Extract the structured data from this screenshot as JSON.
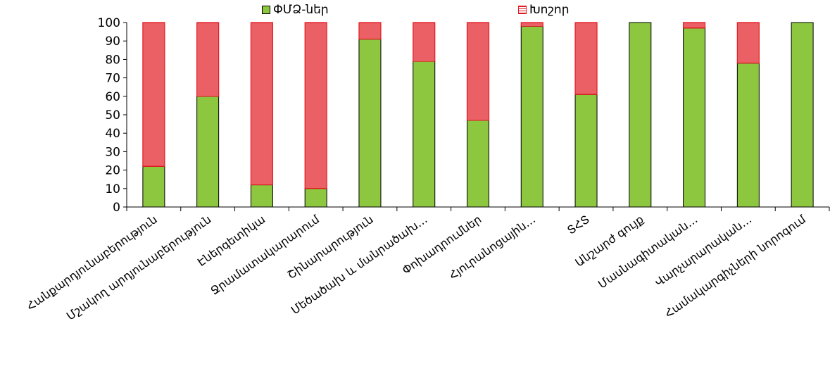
{
  "chart_data": {
    "type": "bar",
    "stacked": true,
    "title": "",
    "xlabel": "",
    "ylabel": "",
    "ylim": [
      0,
      100
    ],
    "yticks": [
      0,
      10,
      20,
      30,
      40,
      50,
      60,
      70,
      80,
      90,
      100
    ],
    "grid": false,
    "legend_position": "top",
    "categories": [
      "Հանքարդյունաբերություն",
      "Մշակող արդյունաբերություն",
      "Էներգետիկա",
      "Ջրամատակարարում",
      "Շինարարություն",
      "Մեծածախ և մանրածախ…",
      "Փոխադրումներ",
      "Հյուրանոցային…",
      "ՏՀՏ",
      "Անշարժ գույք",
      "Մասնագիտական…",
      "Վարչարարական…",
      "Համակարգիչների նորոգում"
    ],
    "series": [
      {
        "name": "ՓՄՁ-ներ",
        "values": [
          22,
          60,
          12,
          10,
          91,
          79,
          47,
          98,
          61,
          100,
          97,
          78,
          100
        ],
        "color": "#8dc63f"
      },
      {
        "name": "Խոշոր",
        "values": [
          78,
          40,
          88,
          90,
          9,
          21,
          53,
          2,
          39,
          0,
          3,
          22,
          0
        ],
        "color": "#e31b23"
      }
    ]
  }
}
